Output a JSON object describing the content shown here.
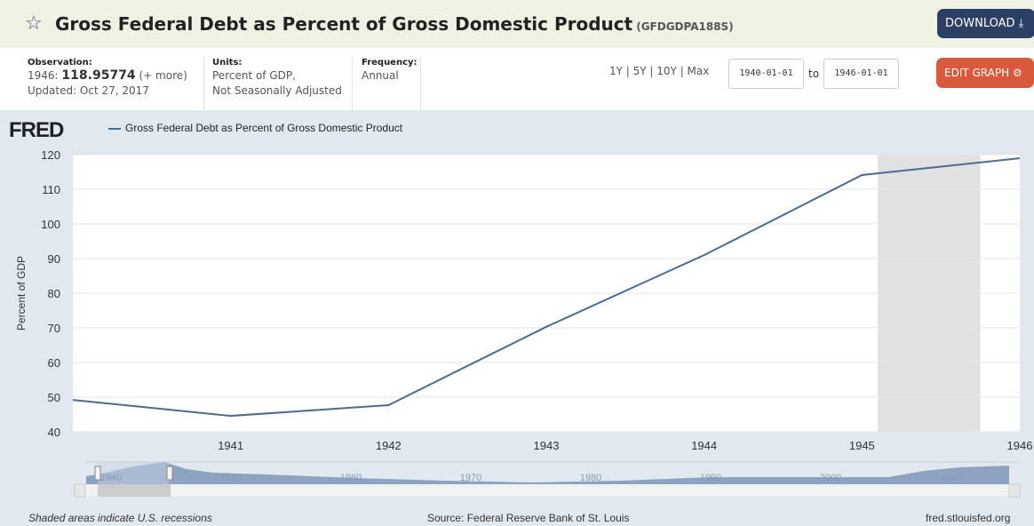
{
  "header": {
    "title": "Gross Federal Debt as Percent of Gross Domestic Product",
    "series_id": "(GFDGDPA188S)",
    "download_label": "DOWNLOAD ⤓"
  },
  "meta": {
    "observation_label": "Observation:",
    "obs_year": "1946:",
    "obs_value": "118.95774",
    "more": "(+ more)",
    "updated": "Updated: Oct 27, 2017",
    "units_label": "Units:",
    "units_1": "Percent of GDP,",
    "units_2": "Not Seasonally Adjusted",
    "freq_label": "Frequency:",
    "freq": "Annual"
  },
  "controls": {
    "ranges": "1Y | 5Y | 10Y | Max",
    "start": "1940-01-01",
    "to": "to",
    "end": "1946-01-01",
    "edit_label": "EDIT GRAPH ⚙"
  },
  "logo": "FRED",
  "footer": {
    "note": "Shaded areas indicate U.S. recessions",
    "source": "Source: Federal Reserve Bank of St. Louis",
    "site": "fred.stlouisfed.org"
  },
  "navigator": {
    "labels": [
      "1940",
      "1950",
      "1960",
      "1970",
      "1980",
      "1990",
      "2000",
      "2010"
    ]
  },
  "chart_data": {
    "type": "line",
    "title": "Gross Federal Debt as Percent of Gross Domestic Product",
    "ylabel": "Percent of GDP",
    "xlabel": "",
    "ylim": [
      40,
      120
    ],
    "xlim": [
      1940,
      1946
    ],
    "yticks": [
      40,
      50,
      60,
      70,
      80,
      90,
      100,
      110,
      120
    ],
    "xticks": [
      1941,
      1942,
      1943,
      1944,
      1945,
      1946
    ],
    "grid": true,
    "legend": "top-left",
    "series": [
      {
        "name": "Gross Federal Debt as Percent of Gross Domestic Product",
        "color": "#4d6a8f",
        "x": [
          1940,
          1941,
          1942,
          1943,
          1944,
          1945,
          1946
        ],
        "values": [
          49.2,
          44.6,
          47.7,
          70.3,
          91.0,
          114.1,
          118.96
        ]
      }
    ],
    "recessions": [
      [
        1945.1,
        1945.75
      ]
    ]
  }
}
